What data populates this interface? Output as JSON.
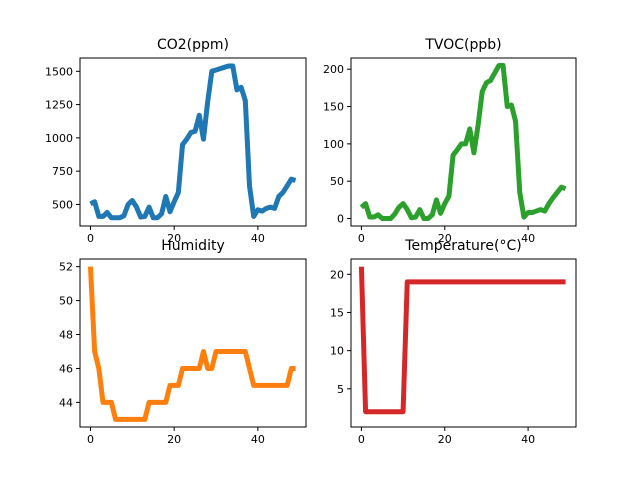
{
  "chart_data": [
    {
      "type": "line",
      "title": "CO2(ppm)",
      "color": "#1f77b4",
      "x": [
        0,
        1,
        2,
        3,
        4,
        5,
        6,
        7,
        8,
        9,
        10,
        11,
        12,
        13,
        14,
        15,
        16,
        17,
        18,
        19,
        20,
        21,
        22,
        23,
        24,
        25,
        26,
        27,
        28,
        29,
        30,
        31,
        32,
        33,
        34,
        35,
        36,
        37,
        38,
        39,
        40,
        41,
        42,
        43,
        44,
        45,
        46,
        47,
        48,
        49
      ],
      "values": [
        505,
        520,
        410,
        410,
        440,
        400,
        400,
        400,
        415,
        500,
        530,
        480,
        405,
        410,
        480,
        400,
        400,
        430,
        560,
        445,
        520,
        590,
        950,
        990,
        1040,
        1050,
        1170,
        990,
        1270,
        1500,
        1510,
        1520,
        1530,
        1540,
        1540,
        1360,
        1380,
        1280,
        640,
        410,
        460,
        450,
        470,
        480,
        470,
        560,
        590,
        640,
        690,
        680
      ],
      "xticks": [
        0,
        20,
        40
      ],
      "yticks": [
        500,
        750,
        1000,
        1250,
        1500
      ],
      "xlim": [
        -2.5,
        51.5
      ],
      "ylim": [
        338,
        1600
      ]
    },
    {
      "type": "line",
      "title": "TVOC(ppb)",
      "color": "#2ca02c",
      "x": [
        0,
        1,
        2,
        3,
        4,
        5,
        6,
        7,
        8,
        9,
        10,
        11,
        12,
        13,
        14,
        15,
        16,
        17,
        18,
        19,
        20,
        21,
        22,
        23,
        24,
        25,
        26,
        27,
        28,
        29,
        30,
        31,
        32,
        33,
        34,
        35,
        36,
        37,
        38,
        39,
        40,
        41,
        42,
        43,
        44,
        45,
        46,
        47,
        48,
        49
      ],
      "values": [
        15,
        20,
        2,
        2,
        5,
        0,
        0,
        0,
        6,
        15,
        20,
        12,
        1,
        2,
        12,
        0,
        0,
        5,
        25,
        7,
        20,
        30,
        85,
        92,
        100,
        100,
        120,
        88,
        125,
        170,
        182,
        185,
        195,
        205,
        205,
        150,
        152,
        130,
        35,
        2,
        8,
        8,
        10,
        12,
        10,
        20,
        28,
        35,
        42,
        40
      ],
      "xticks": [
        0,
        20,
        40
      ],
      "yticks": [
        0,
        50,
        100,
        150,
        200
      ],
      "xlim": [
        -2.5,
        51.5
      ],
      "ylim": [
        -10,
        215
      ]
    },
    {
      "type": "line",
      "title": "Humidity",
      "color": "#ff7f0e",
      "x": [
        0,
        1,
        2,
        3,
        4,
        5,
        6,
        7,
        8,
        9,
        10,
        11,
        12,
        13,
        14,
        15,
        16,
        17,
        18,
        19,
        20,
        21,
        22,
        23,
        24,
        25,
        26,
        27,
        28,
        29,
        30,
        31,
        32,
        33,
        34,
        35,
        36,
        37,
        38,
        39,
        40,
        41,
        42,
        43,
        44,
        45,
        46,
        47,
        48,
        49
      ],
      "values": [
        52,
        47,
        46,
        44,
        44,
        44,
        43,
        43,
        43,
        43,
        43,
        43,
        43,
        43,
        44,
        44,
        44,
        44,
        44,
        45,
        45,
        45,
        46,
        46,
        46,
        46,
        46,
        47,
        46,
        46,
        47,
        47,
        47,
        47,
        47,
        47,
        47,
        47,
        46,
        45,
        45,
        45,
        45,
        45,
        45,
        45,
        45,
        45,
        46,
        46
      ],
      "xticks": [
        0,
        20,
        40
      ],
      "yticks": [
        44,
        46,
        48,
        50,
        52
      ],
      "xlim": [
        -2.5,
        51.5
      ],
      "ylim": [
        42.55,
        52.45
      ]
    },
    {
      "type": "line",
      "title": "Temperature(°C)",
      "color": "#d62728",
      "x": [
        0,
        1,
        2,
        3,
        4,
        5,
        6,
        7,
        8,
        9,
        10,
        11,
        12,
        13,
        14,
        15,
        16,
        17,
        18,
        19,
        20,
        21,
        22,
        23,
        24,
        25,
        26,
        27,
        28,
        29,
        30,
        31,
        32,
        33,
        34,
        35,
        36,
        37,
        38,
        39,
        40,
        41,
        42,
        43,
        44,
        45,
        46,
        47,
        48,
        49
      ],
      "values": [
        21,
        2,
        2,
        2,
        2,
        2,
        2,
        2,
        2,
        2,
        2,
        19,
        19,
        19,
        19,
        19,
        19,
        19,
        19,
        19,
        19,
        19,
        19,
        19,
        19,
        19,
        19,
        19,
        19,
        19,
        19,
        19,
        19,
        19,
        19,
        19,
        19,
        19,
        19,
        19,
        19,
        19,
        19,
        19,
        19,
        19,
        19,
        19,
        19,
        19
      ],
      "xticks": [
        0,
        20,
        40
      ],
      "yticks": [
        5,
        10,
        15,
        20
      ],
      "xlim": [
        -2.5,
        51.5
      ],
      "ylim": [
        0,
        22
      ]
    }
  ]
}
